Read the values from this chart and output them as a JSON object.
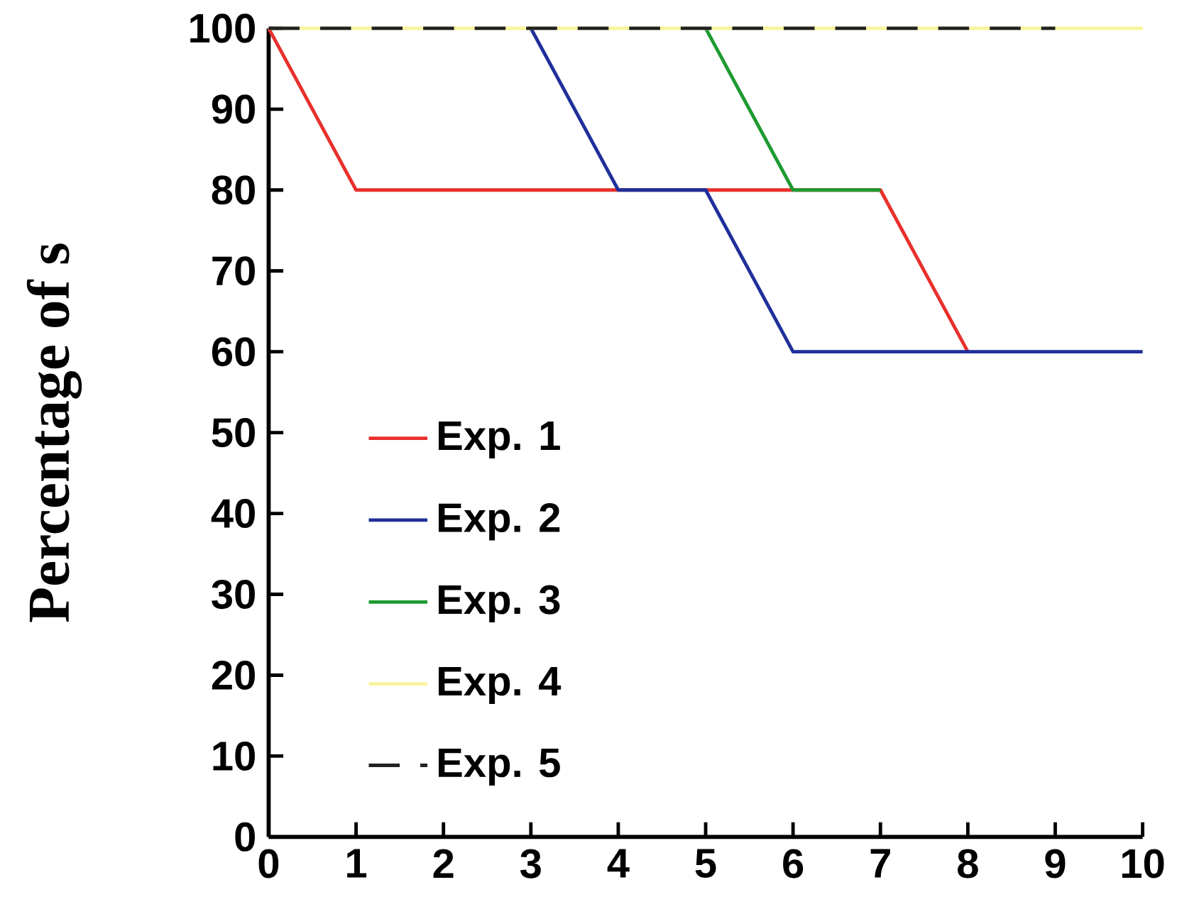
{
  "chart_data": {
    "type": "line",
    "ylabel": "Percentage of s",
    "xlim": [
      0,
      10
    ],
    "ylim": [
      0,
      100
    ],
    "xticks": [
      0,
      1,
      2,
      3,
      4,
      5,
      6,
      7,
      8,
      9,
      10
    ],
    "yticks": [
      0,
      10,
      20,
      30,
      40,
      50,
      60,
      70,
      80,
      90,
      100
    ],
    "series": [
      {
        "name": "Exp. 1",
        "color": "#e8302c",
        "x": [
          0,
          1,
          7,
          8
        ],
        "values": [
          100,
          80,
          80,
          60
        ]
      },
      {
        "name": "Exp. 2",
        "color": "#1f2f9a",
        "x": [
          3,
          4,
          5,
          6,
          10
        ],
        "values": [
          100,
          80,
          80,
          60,
          60
        ]
      },
      {
        "name": "Exp. 3",
        "color": "#1e9a30",
        "x": [
          5,
          6,
          7
        ],
        "values": [
          100,
          80,
          80
        ]
      },
      {
        "name": "Exp. 4",
        "color": "#f8f49a",
        "x": [
          0,
          10
        ],
        "values": [
          100,
          100
        ]
      },
      {
        "name": "Exp. 5",
        "color": "#222222",
        "x": [
          0,
          9
        ],
        "values": [
          100,
          100
        ],
        "line_style": "dashed"
      }
    ],
    "legend": "bottom left",
    "grid": false,
    "marker": "none"
  }
}
